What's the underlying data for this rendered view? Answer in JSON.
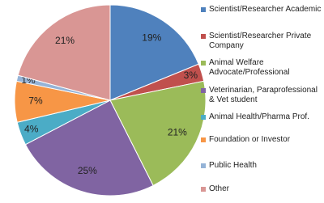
{
  "chart_data": {
    "type": "pie",
    "categories": [
      "Scientist/Researcher Academic",
      "Scientist/Researcher Private Company",
      "Animal Welfare Advocate/Professional",
      "Veterinarian, Paraprofessional & Vet student",
      "Animal Health/Pharma Prof.",
      "Foundation or Investor",
      "Public Health",
      "Other"
    ],
    "values": [
      19,
      3,
      21,
      25,
      4,
      7,
      1,
      21
    ],
    "value_labels": [
      "19%",
      "3%",
      "21%",
      "25%",
      "4%",
      "7%",
      "1%",
      "21%"
    ],
    "colors": [
      "#4f81bd",
      "#c0504d",
      "#9bbb59",
      "#8064a2",
      "#4bacc6",
      "#f79646",
      "#95b3d7",
      "#d99694"
    ],
    "legend": "right"
  }
}
